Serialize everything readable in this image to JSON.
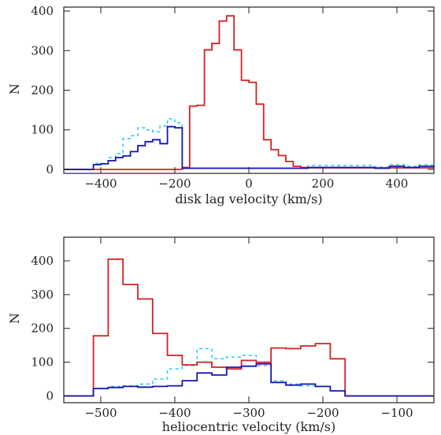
{
  "chart_data": [
    {
      "type": "histogram",
      "xlabel": "disk lag velocity (km/s)",
      "ylabel": "N",
      "xlim": [
        -500,
        500
      ],
      "ylim": [
        -10,
        410
      ],
      "xticks": [
        -400,
        -200,
        0,
        200,
        400
      ],
      "xtick_labels": [
        "−400",
        "−200",
        "0",
        "200",
        "400"
      ],
      "yticks": [
        0,
        100,
        200,
        300,
        400
      ],
      "ytick_labels": [
        "0",
        "100",
        "200",
        "300",
        "400"
      ],
      "bin_width": 20,
      "series": [
        {
          "color": "#d42020",
          "dash": "none",
          "x_start": -180,
          "counts": [
            5,
            160,
            162,
            302,
            318,
            375,
            388,
            302,
            225,
            220,
            165,
            75,
            50,
            35,
            20,
            8,
            5,
            4,
            4,
            4,
            4,
            4,
            4,
            4,
            4,
            4,
            4,
            4,
            4,
            4,
            4,
            4,
            4,
            4
          ],
          "baseline_range": [
            -500,
            500
          ]
        },
        {
          "color": "#1515b0",
          "dash": "none",
          "x_start": -420,
          "counts": [
            12,
            14,
            22,
            30,
            34,
            45,
            60,
            70,
            75,
            65,
            108,
            105
          ],
          "after_counts": [
            3,
            3,
            3,
            3,
            3,
            3,
            3,
            3,
            3,
            3,
            3,
            3,
            3,
            3,
            3,
            3,
            3,
            5,
            5,
            5,
            5,
            5,
            5,
            5,
            5,
            5,
            3,
            3,
            8,
            8,
            5,
            5,
            8,
            8,
            5
          ],
          "baseline_range": [
            -500,
            500
          ]
        },
        {
          "color": "#22ccee",
          "dash": "4,4",
          "x_start": -420,
          "counts": [
            15,
            15,
            30,
            40,
            78,
            85,
            105,
            100,
            95,
            110,
            128,
            118
          ],
          "after_counts": [
            3,
            3,
            3,
            3,
            3,
            3,
            3,
            3,
            3,
            3,
            3,
            3,
            3,
            3,
            3,
            3,
            3,
            10,
            10,
            10,
            10,
            10,
            10,
            10,
            10,
            10,
            6,
            6,
            12,
            12,
            8,
            8,
            12,
            12,
            8
          ],
          "baseline_range": [
            -500,
            500
          ]
        }
      ]
    },
    {
      "type": "histogram",
      "xlabel": "heliocentric velocity (km/s)",
      "ylabel": "N",
      "xlim": [
        -550,
        -50
      ],
      "ylim": [
        -20,
        470
      ],
      "xticks": [
        -500,
        -400,
        -300,
        -200,
        -100
      ],
      "xtick_labels": [
        "−500",
        "−400",
        "−300",
        "−200",
        "−100"
      ],
      "yticks": [
        0,
        100,
        200,
        300,
        400
      ],
      "ytick_labels": [
        "0",
        "100",
        "200",
        "300",
        "400"
      ],
      "bin_width": 20,
      "series": [
        {
          "color": "#d42020",
          "dash": "none",
          "x_start": -510,
          "counts": [
            178,
            405,
            330,
            287,
            185,
            120,
            92,
            100,
            85,
            80,
            105,
            100,
            142,
            140,
            148,
            155,
            110
          ],
          "baseline_range": [
            -550,
            -50
          ]
        },
        {
          "color": "#1515b0",
          "dash": "none",
          "x_start": -510,
          "counts": [
            22,
            25,
            28,
            26,
            28,
            30,
            45,
            68,
            62,
            85,
            88,
            95,
            40,
            32,
            35,
            28,
            15
          ],
          "baseline_range": [
            -550,
            -50
          ]
        },
        {
          "color": "#22ccee",
          "dash": "4,4",
          "x_start": -510,
          "counts": [
            22,
            28,
            30,
            35,
            50,
            80,
            90,
            140,
            110,
            115,
            120,
            90,
            45,
            35,
            30,
            28,
            15
          ],
          "baseline_range": [
            -550,
            -50
          ]
        }
      ]
    }
  ]
}
